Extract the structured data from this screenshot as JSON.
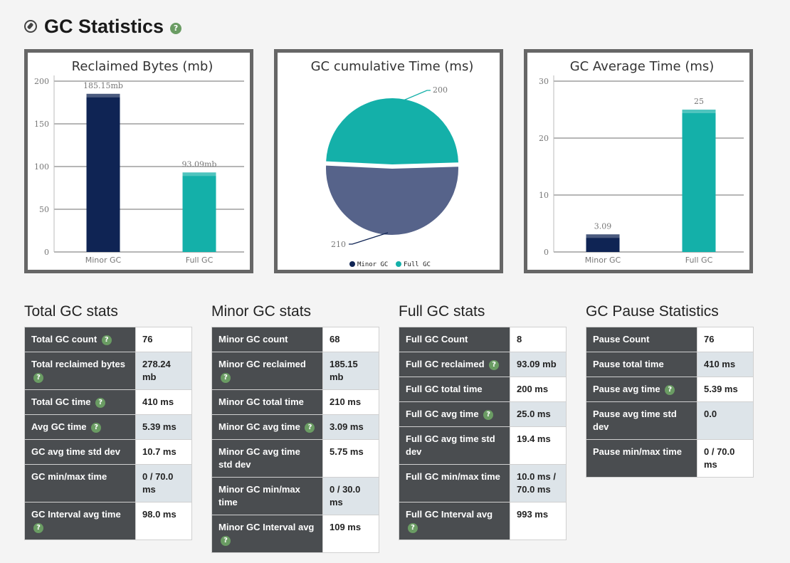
{
  "page": {
    "title": "GC Statistics"
  },
  "charts": {
    "reclaimed": {
      "title": "Reclaimed Bytes (mb)",
      "categories": [
        "Minor GC",
        "Full GC"
      ],
      "values": [
        185.15,
        93.09
      ],
      "data_labels": [
        "185.15mb",
        "93.09mb"
      ],
      "yticks": [
        "0",
        "50",
        "100",
        "150",
        "200"
      ],
      "colors": [
        "#0f2454",
        "#14b0a9"
      ]
    },
    "cumulative": {
      "title": "GC cumulative Time (ms)",
      "legend": [
        "Minor GC",
        "Full GC"
      ],
      "values": [
        210,
        200
      ],
      "data_labels": [
        "210",
        "200"
      ],
      "colors": [
        "#56638a",
        "#14b0a9"
      ],
      "legend_colors": [
        "#0f2454",
        "#14b0a9"
      ]
    },
    "average": {
      "title": "GC Average Time (ms)",
      "categories": [
        "Minor GC",
        "Full GC"
      ],
      "values": [
        3.09,
        25
      ],
      "data_labels": [
        "3.09",
        "25"
      ],
      "yticks": [
        "0",
        "10",
        "20",
        "30"
      ],
      "colors": [
        "#0f2454",
        "#14b0a9"
      ]
    }
  },
  "chart_data": [
    {
      "type": "bar",
      "title": "Reclaimed Bytes (mb)",
      "categories": [
        "Minor GC",
        "Full GC"
      ],
      "values": [
        185.15,
        93.09
      ],
      "ylim": [
        0,
        200
      ],
      "grid": true
    },
    {
      "type": "pie",
      "title": "GC cumulative Time (ms)",
      "categories": [
        "Minor GC",
        "Full GC"
      ],
      "values": [
        210,
        200
      ],
      "legend": "bottom"
    },
    {
      "type": "bar",
      "title": "GC Average Time (ms)",
      "categories": [
        "Minor GC",
        "Full GC"
      ],
      "values": [
        3.09,
        25
      ],
      "ylim": [
        0,
        30
      ],
      "grid": true
    }
  ],
  "total": {
    "title": "Total GC stats",
    "rows": [
      {
        "label": "Total GC count",
        "value": "76",
        "help": true
      },
      {
        "label": "Total reclaimed bytes",
        "value": "278.24 mb",
        "help": true
      },
      {
        "label": "Total GC time",
        "value": "410 ms",
        "help": true
      },
      {
        "label": "Avg GC time",
        "value": "5.39 ms",
        "help": true
      },
      {
        "label": "GC avg time std dev",
        "value": "10.7 ms",
        "help": false
      },
      {
        "label": "GC min/max time",
        "value": "0 / 70.0 ms",
        "help": false
      },
      {
        "label": "GC Interval avg time",
        "value": "98.0 ms",
        "help": true
      }
    ]
  },
  "minor": {
    "title": "Minor GC stats",
    "rows": [
      {
        "label": "Minor GC count",
        "value": "68",
        "help": false
      },
      {
        "label": "Minor GC reclaimed",
        "value": "185.15 mb",
        "help": true
      },
      {
        "label": "Minor GC total time",
        "value": "210 ms",
        "help": false
      },
      {
        "label": "Minor GC avg time",
        "value": "3.09 ms",
        "help": true
      },
      {
        "label": "Minor GC avg time std dev",
        "value": "5.75 ms",
        "help": false
      },
      {
        "label": "Minor GC min/max time",
        "value": "0 / 30.0 ms",
        "help": false
      },
      {
        "label": "Minor GC Interval avg",
        "value": "109 ms",
        "help": true
      }
    ]
  },
  "full": {
    "title": "Full GC stats",
    "rows": [
      {
        "label": "Full GC Count",
        "value": "8",
        "help": false
      },
      {
        "label": "Full GC reclaimed",
        "value": "93.09 mb",
        "help": true
      },
      {
        "label": "Full GC total time",
        "value": "200 ms",
        "help": false
      },
      {
        "label": "Full GC avg time",
        "value": "25.0 ms",
        "help": true
      },
      {
        "label": "Full GC avg time std dev",
        "value": "19.4 ms",
        "help": false
      },
      {
        "label": "Full GC min/max time",
        "value": "10.0 ms / 70.0 ms",
        "help": false
      },
      {
        "label": "Full GC Interval avg",
        "value": "993 ms",
        "help": true
      }
    ]
  },
  "pause": {
    "title": "GC Pause Statistics",
    "rows": [
      {
        "label": "Pause Count",
        "value": "76",
        "help": false
      },
      {
        "label": "Pause total time",
        "value": "410 ms",
        "help": false
      },
      {
        "label": "Pause avg time",
        "value": "5.39 ms",
        "help": true
      },
      {
        "label": "Pause avg time std dev",
        "value": "0.0",
        "help": false
      },
      {
        "label": "Pause min/max time",
        "value": "0 / 70.0 ms",
        "help": false
      }
    ]
  }
}
